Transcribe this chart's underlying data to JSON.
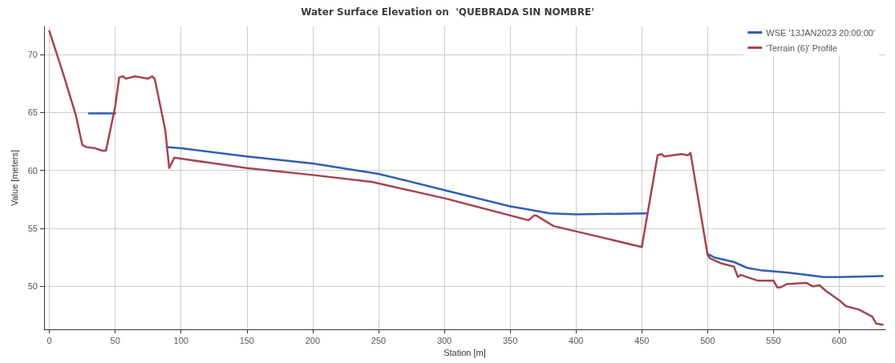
{
  "chart_data": {
    "type": "line",
    "title": "Water Surface Elevation on  'QUEBRADA SIN NOMBRE'",
    "xlabel": "Station [m]",
    "ylabel": "Value [meters]",
    "xlim": [
      -4,
      635
    ],
    "xticks": [
      0,
      50,
      100,
      150,
      200,
      250,
      300,
      350,
      400,
      450,
      500,
      550,
      600
    ],
    "ylim": [
      46.3,
      72.4
    ],
    "yticks": [
      50,
      55,
      60,
      65,
      70
    ],
    "grid": true,
    "legend": "top right",
    "marker": "none",
    "line_style": "solid",
    "series": [
      {
        "name": "WSE '13JAN2023 20:00:00'",
        "color": "#2f5fb3",
        "x": [
          30,
          50,
          70,
          89,
          100,
          150,
          200,
          250,
          300,
          350,
          365,
          380,
          400,
          454,
          480,
          500,
          505,
          520,
          530,
          540,
          560,
          575,
          588,
          600,
          633
        ],
        "values": [
          64.9,
          64.9,
          null,
          62,
          61.9,
          61.2,
          60.6,
          59.7,
          58.3,
          56.9,
          56.6,
          56.3,
          56.2,
          56.3,
          null,
          52.8,
          52.5,
          52.1,
          51.6,
          51.4,
          51.2,
          51,
          50.8,
          50.8,
          50.9
        ]
      },
      {
        "name": "'Terrain (6)' Profile",
        "color": "#a4444f",
        "x": [
          0,
          10,
          20,
          25,
          28,
          35,
          40,
          43,
          50,
          53,
          56,
          58,
          65,
          75,
          78,
          80,
          88,
          91,
          95,
          100,
          150,
          200,
          245,
          300,
          364,
          368,
          370,
          383,
          450,
          462,
          465,
          467,
          480,
          485,
          487,
          500,
          502,
          510,
          520,
          523,
          525,
          530,
          538,
          550,
          553,
          555,
          560,
          575,
          580,
          585,
          590,
          600,
          605,
          615,
          625,
          628,
          633
        ],
        "values": [
          72,
          68.5,
          64.8,
          62.2,
          62,
          61.9,
          61.7,
          61.7,
          65.5,
          68,
          68.1,
          67.9,
          68.1,
          67.9,
          68.1,
          67.9,
          63.5,
          60.2,
          61.1,
          61,
          60.2,
          59.6,
          59,
          57.6,
          55.7,
          56.1,
          56.1,
          55.2,
          53.4,
          61.3,
          61.4,
          61.2,
          61.4,
          61.3,
          61.5,
          52.7,
          52.4,
          52,
          51.7,
          50.8,
          51,
          50.8,
          50.5,
          50.5,
          49.9,
          49.9,
          50.2,
          50.3,
          50,
          50.1,
          49.6,
          48.8,
          48.3,
          48,
          47.4,
          46.8,
          46.7
        ]
      }
    ]
  }
}
